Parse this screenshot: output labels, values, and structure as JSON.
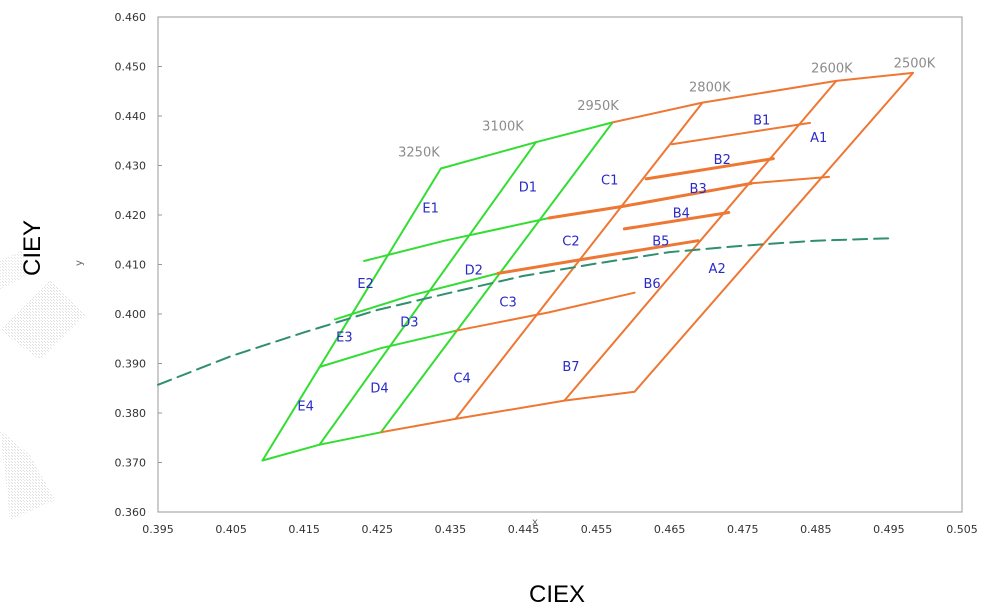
{
  "chart_data": {
    "type": "line",
    "xlabel": "CIEX",
    "ylabel": "CIEY",
    "inner_xlabel": "x",
    "inner_ylabel": "y",
    "xlim": [
      0.395,
      0.505
    ],
    "ylim": [
      0.36,
      0.46
    ],
    "x_ticks": [
      "0.395",
      "0.405",
      "0.415",
      "0.425",
      "0.435",
      "0.445",
      "0.455",
      "0.465",
      "0.475",
      "0.485",
      "0.495",
      "0.505"
    ],
    "y_ticks": [
      "0.360",
      "0.370",
      "0.380",
      "0.390",
      "0.400",
      "0.410",
      "0.420",
      "0.430",
      "0.440",
      "0.450",
      "0.460"
    ],
    "colors": {
      "green": "#33dd33",
      "orange": "#ee7733",
      "dash": "#2f8f6f",
      "label": "#2a2ac8",
      "cct": "#8c8c8c"
    },
    "cct_labels": [
      {
        "text": "3250K",
        "x": 0.4307,
        "y": 0.4318
      },
      {
        "text": "3100K",
        "x": 0.4422,
        "y": 0.4371
      },
      {
        "text": "2950K",
        "x": 0.4552,
        "y": 0.4412
      },
      {
        "text": "2800K",
        "x": 0.4705,
        "y": 0.4449
      },
      {
        "text": "2600K",
        "x": 0.4872,
        "y": 0.4488
      },
      {
        "text": "2500K",
        "x": 0.4985,
        "y": 0.4498
      }
    ],
    "bin_labels": [
      {
        "text": "E1",
        "x": 0.4323,
        "y": 0.4215
      },
      {
        "text": "D1",
        "x": 0.4456,
        "y": 0.4258
      },
      {
        "text": "C1",
        "x": 0.4568,
        "y": 0.4272
      },
      {
        "text": "B1",
        "x": 0.4776,
        "y": 0.4393
      },
      {
        "text": "A1",
        "x": 0.4854,
        "y": 0.4358
      },
      {
        "text": "B2",
        "x": 0.4722,
        "y": 0.4313
      },
      {
        "text": "B3",
        "x": 0.4689,
        "y": 0.4255
      },
      {
        "text": "B4",
        "x": 0.4666,
        "y": 0.4205
      },
      {
        "text": "B5",
        "x": 0.4638,
        "y": 0.4148
      },
      {
        "text": "C2",
        "x": 0.4515,
        "y": 0.4148
      },
      {
        "text": "D2",
        "x": 0.4382,
        "y": 0.409
      },
      {
        "text": "E2",
        "x": 0.4234,
        "y": 0.4063
      },
      {
        "text": "B6",
        "x": 0.4626,
        "y": 0.4063
      },
      {
        "text": "A2",
        "x": 0.4715,
        "y": 0.4093
      },
      {
        "text": "C3",
        "x": 0.4429,
        "y": 0.4025
      },
      {
        "text": "D3",
        "x": 0.4294,
        "y": 0.3985
      },
      {
        "text": "E3",
        "x": 0.4205,
        "y": 0.3955
      },
      {
        "text": "C4",
        "x": 0.4366,
        "y": 0.3872
      },
      {
        "text": "D4",
        "x": 0.4253,
        "y": 0.3852
      },
      {
        "text": "B7",
        "x": 0.4515,
        "y": 0.3895
      },
      {
        "text": "E4",
        "x": 0.4152,
        "y": 0.3815
      }
    ],
    "series": [
      {
        "color": "green",
        "dash": false,
        "width": 2,
        "points": [
          [
            0.4093,
            0.3704
          ],
          [
            0.4337,
            0.4294
          ]
        ]
      },
      {
        "color": "green",
        "dash": false,
        "width": 2,
        "points": [
          [
            0.4171,
            0.3736
          ],
          [
            0.4467,
            0.4347
          ]
        ]
      },
      {
        "color": "green",
        "dash": false,
        "width": 2,
        "points": [
          [
            0.4255,
            0.3761
          ],
          [
            0.4572,
            0.4387
          ]
        ]
      },
      {
        "color": "green",
        "dash": false,
        "width": 2,
        "points": [
          [
            0.4337,
            0.4294
          ],
          [
            0.4467,
            0.4347
          ],
          [
            0.4572,
            0.4387
          ]
        ]
      },
      {
        "color": "green",
        "dash": false,
        "width": 2,
        "points": [
          [
            0.4232,
            0.4107
          ],
          [
            0.4342,
            0.4148
          ],
          [
            0.4485,
            0.4194
          ]
        ]
      },
      {
        "color": "green",
        "dash": false,
        "width": 2,
        "points": [
          [
            0.4192,
            0.3989
          ],
          [
            0.4295,
            0.4037
          ],
          [
            0.4415,
            0.4082
          ]
        ]
      },
      {
        "color": "green",
        "dash": false,
        "width": 2,
        "points": [
          [
            0.4171,
            0.3893
          ],
          [
            0.4255,
            0.3931
          ],
          [
            0.4357,
            0.3966
          ]
        ]
      },
      {
        "color": "green",
        "dash": false,
        "width": 2,
        "points": [
          [
            0.4093,
            0.3704
          ],
          [
            0.4171,
            0.3736
          ],
          [
            0.4255,
            0.3761
          ]
        ]
      },
      {
        "color": "orange",
        "dash": false,
        "width": 2,
        "points": [
          [
            0.4255,
            0.3761
          ],
          [
            0.4357,
            0.3788
          ],
          [
            0.4506,
            0.3825
          ],
          [
            0.4602,
            0.3843
          ],
          [
            0.4983,
            0.4487
          ]
        ]
      },
      {
        "color": "orange",
        "dash": false,
        "width": 2,
        "points": [
          [
            0.4572,
            0.4387
          ],
          [
            0.4695,
            0.4427
          ],
          [
            0.4878,
            0.4471
          ],
          [
            0.4983,
            0.4487
          ]
        ]
      },
      {
        "color": "orange",
        "dash": false,
        "width": 2,
        "points": [
          [
            0.4357,
            0.3788
          ],
          [
            0.4695,
            0.4427
          ]
        ]
      },
      {
        "color": "orange",
        "dash": false,
        "width": 2,
        "points": [
          [
            0.4506,
            0.3825
          ],
          [
            0.4878,
            0.4471
          ]
        ]
      },
      {
        "color": "orange",
        "dash": false,
        "width": 2,
        "points": [
          [
            0.4653,
            0.4343
          ],
          [
            0.4842,
            0.4386
          ]
        ]
      },
      {
        "color": "orange",
        "dash": false,
        "width": 3,
        "points": [
          [
            0.4618,
            0.4273
          ],
          [
            0.4792,
            0.4314
          ]
        ]
      },
      {
        "color": "orange",
        "dash": false,
        "width": 3,
        "points": [
          [
            0.4485,
            0.4194
          ],
          [
            0.4588,
            0.4218
          ],
          [
            0.4762,
            0.4264
          ]
        ]
      },
      {
        "color": "orange",
        "dash": false,
        "width": 2,
        "points": [
          [
            0.4762,
            0.4264
          ],
          [
            0.4868,
            0.4277
          ]
        ]
      },
      {
        "color": "orange",
        "dash": false,
        "width": 3,
        "points": [
          [
            0.4588,
            0.4172
          ],
          [
            0.4731,
            0.4205
          ]
        ]
      },
      {
        "color": "orange",
        "dash": false,
        "width": 3,
        "points": [
          [
            0.4415,
            0.4082
          ],
          [
            0.4541,
            0.4113
          ],
          [
            0.4689,
            0.4148
          ]
        ]
      },
      {
        "color": "orange",
        "dash": false,
        "width": 2,
        "points": [
          [
            0.4357,
            0.3966
          ],
          [
            0.4484,
            0.4003
          ],
          [
            0.4602,
            0.4043
          ]
        ]
      },
      {
        "color": "dash",
        "dash": true,
        "width": 2,
        "points": [
          [
            0.395,
            0.3857
          ],
          [
            0.405,
            0.3915
          ],
          [
            0.415,
            0.3963
          ],
          [
            0.425,
            0.4008
          ],
          [
            0.435,
            0.4043
          ],
          [
            0.445,
            0.4077
          ],
          [
            0.455,
            0.4102
          ],
          [
            0.465,
            0.4125
          ],
          [
            0.475,
            0.4138
          ],
          [
            0.485,
            0.4148
          ],
          [
            0.495,
            0.4153
          ]
        ]
      }
    ]
  }
}
